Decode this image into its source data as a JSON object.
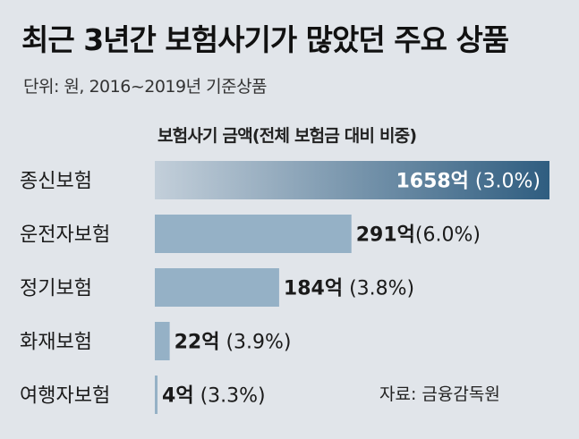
{
  "title": "최근 3년간 보험사기가 많았던 주요 상품",
  "subtitle": "단위: 원, 2016~2019년 기준상품",
  "chart_header": "보험사기 금액(전체 보험금 대비 비중)",
  "source": "자료: 금융감독원",
  "colors": {
    "background": "#e1e5ea",
    "bar": "#95b1c6",
    "top_bar_start": "#c3cfda",
    "top_bar_end": "#2f5d80",
    "top_bar_label": "#ffffff",
    "label": "#1a1a1a"
  },
  "chart_data": {
    "type": "bar",
    "orientation": "horizontal",
    "title": "보험사기 금액(전체 보험금 대비 비중)",
    "categories": [
      "종신보험",
      "운전자보험",
      "정기보험",
      "화재보험",
      "여행자보험"
    ],
    "values": [
      1658,
      291,
      184,
      22,
      4
    ],
    "value_labels": [
      "1658억",
      "291억",
      "184억",
      "22억",
      "4억"
    ],
    "share_labels": [
      "(3.0%)",
      "(6.0%)",
      "(3.8%)",
      "(3.9%)",
      "(3.3%)"
    ],
    "value_unit": "억원",
    "top_bar_scale_break": true,
    "xlim": [
      0,
      380
    ]
  }
}
